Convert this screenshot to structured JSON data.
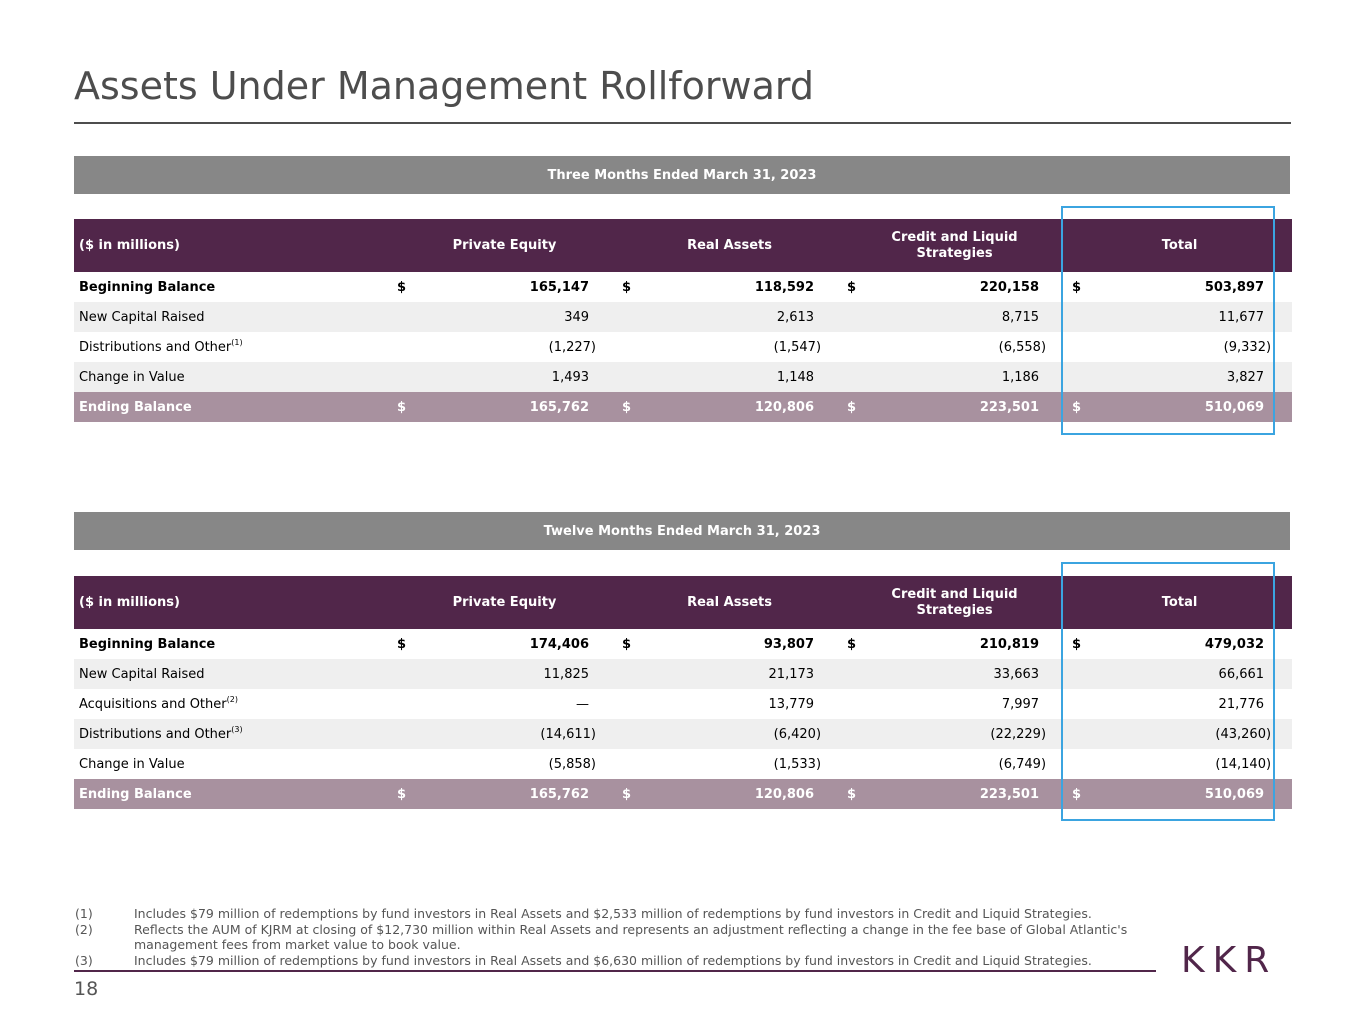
{
  "page": {
    "title": "Assets Under Management Rollforward",
    "page_number": "18",
    "logo_text": "KKR"
  },
  "columns": [
    "($ in millions)",
    "Private Equity",
    "Real Assets",
    "Credit and Liquid Strategies",
    "Total"
  ],
  "section1": {
    "heading": "Three Months Ended March 31, 2023",
    "rows": [
      {
        "label": "Beginning Balance",
        "style": "bold",
        "dollar": "$",
        "pe": "165,147",
        "ra": "118,592",
        "cls": "220,158",
        "total": "503,897"
      },
      {
        "label": "New Capital Raised",
        "style": "shade",
        "dollar": "",
        "pe": "349",
        "ra": "2,613",
        "cls": "8,715",
        "total": "11,677"
      },
      {
        "label": "Distributions and Other",
        "footnote": "(1)",
        "style": "white",
        "dollar": "",
        "pe": "(1,227)",
        "ra": "(1,547)",
        "cls": "(6,558)",
        "total": "(9,332)"
      },
      {
        "label": "Change in Value",
        "style": "shade",
        "dollar": "",
        "pe": "1,493",
        "ra": "1,148",
        "cls": "1,186",
        "total": "3,827"
      },
      {
        "label": "Ending Balance",
        "style": "end",
        "dollar": "$",
        "pe": "165,762",
        "ra": "120,806",
        "cls": "223,501",
        "total": "510,069"
      }
    ]
  },
  "section2": {
    "heading": "Twelve Months Ended March 31, 2023",
    "rows": [
      {
        "label": "Beginning Balance",
        "style": "bold",
        "dollar": "$",
        "pe": "174,406",
        "ra": "93,807",
        "cls": "210,819",
        "total": "479,032"
      },
      {
        "label": "New Capital Raised",
        "style": "shade",
        "dollar": "",
        "pe": "11,825",
        "ra": "21,173",
        "cls": "33,663",
        "total": "66,661"
      },
      {
        "label": "Acquisitions and Other",
        "footnote": "(2)",
        "style": "white",
        "dollar": "",
        "pe": "—",
        "ra": "13,779",
        "cls": "7,997",
        "total": "21,776"
      },
      {
        "label": "Distributions and Other",
        "footnote": "(3)",
        "style": "shade",
        "dollar": "",
        "pe": "(14,611)",
        "ra": "(6,420)",
        "cls": "(22,229)",
        "total": "(43,260)"
      },
      {
        "label": "Change in Value",
        "style": "white",
        "dollar": "",
        "pe": "(5,858)",
        "ra": "(1,533)",
        "cls": "(6,749)",
        "total": "(14,140)"
      },
      {
        "label": "Ending Balance",
        "style": "end",
        "dollar": "$",
        "pe": "165,762",
        "ra": "120,806",
        "cls": "223,501",
        "total": "510,069"
      }
    ]
  },
  "footnotes": [
    {
      "num": "(1)",
      "text": "Includes $79 million of redemptions by fund investors in Real Assets and $2,533 million of redemptions by fund investors in Credit and Liquid Strategies."
    },
    {
      "num": "(2)",
      "text": "Reflects the AUM of KJRM at closing of $12,730 million within Real Assets and represents an adjustment reflecting a change in the fee base of Global Atlantic's management fees from market value to book value."
    },
    {
      "num": "(3)",
      "text": "Includes $79 million of redemptions by fund investors in Real Assets and $6,630 million of redemptions by fund investors in Credit and Liquid Strategies."
    }
  ],
  "colors": {
    "header_bg": "#51264a",
    "band_bg": "#878787",
    "ending_row_bg": "#a8919f",
    "shade_row_bg": "#efefef",
    "highlight_border": "#3ba4e0"
  }
}
